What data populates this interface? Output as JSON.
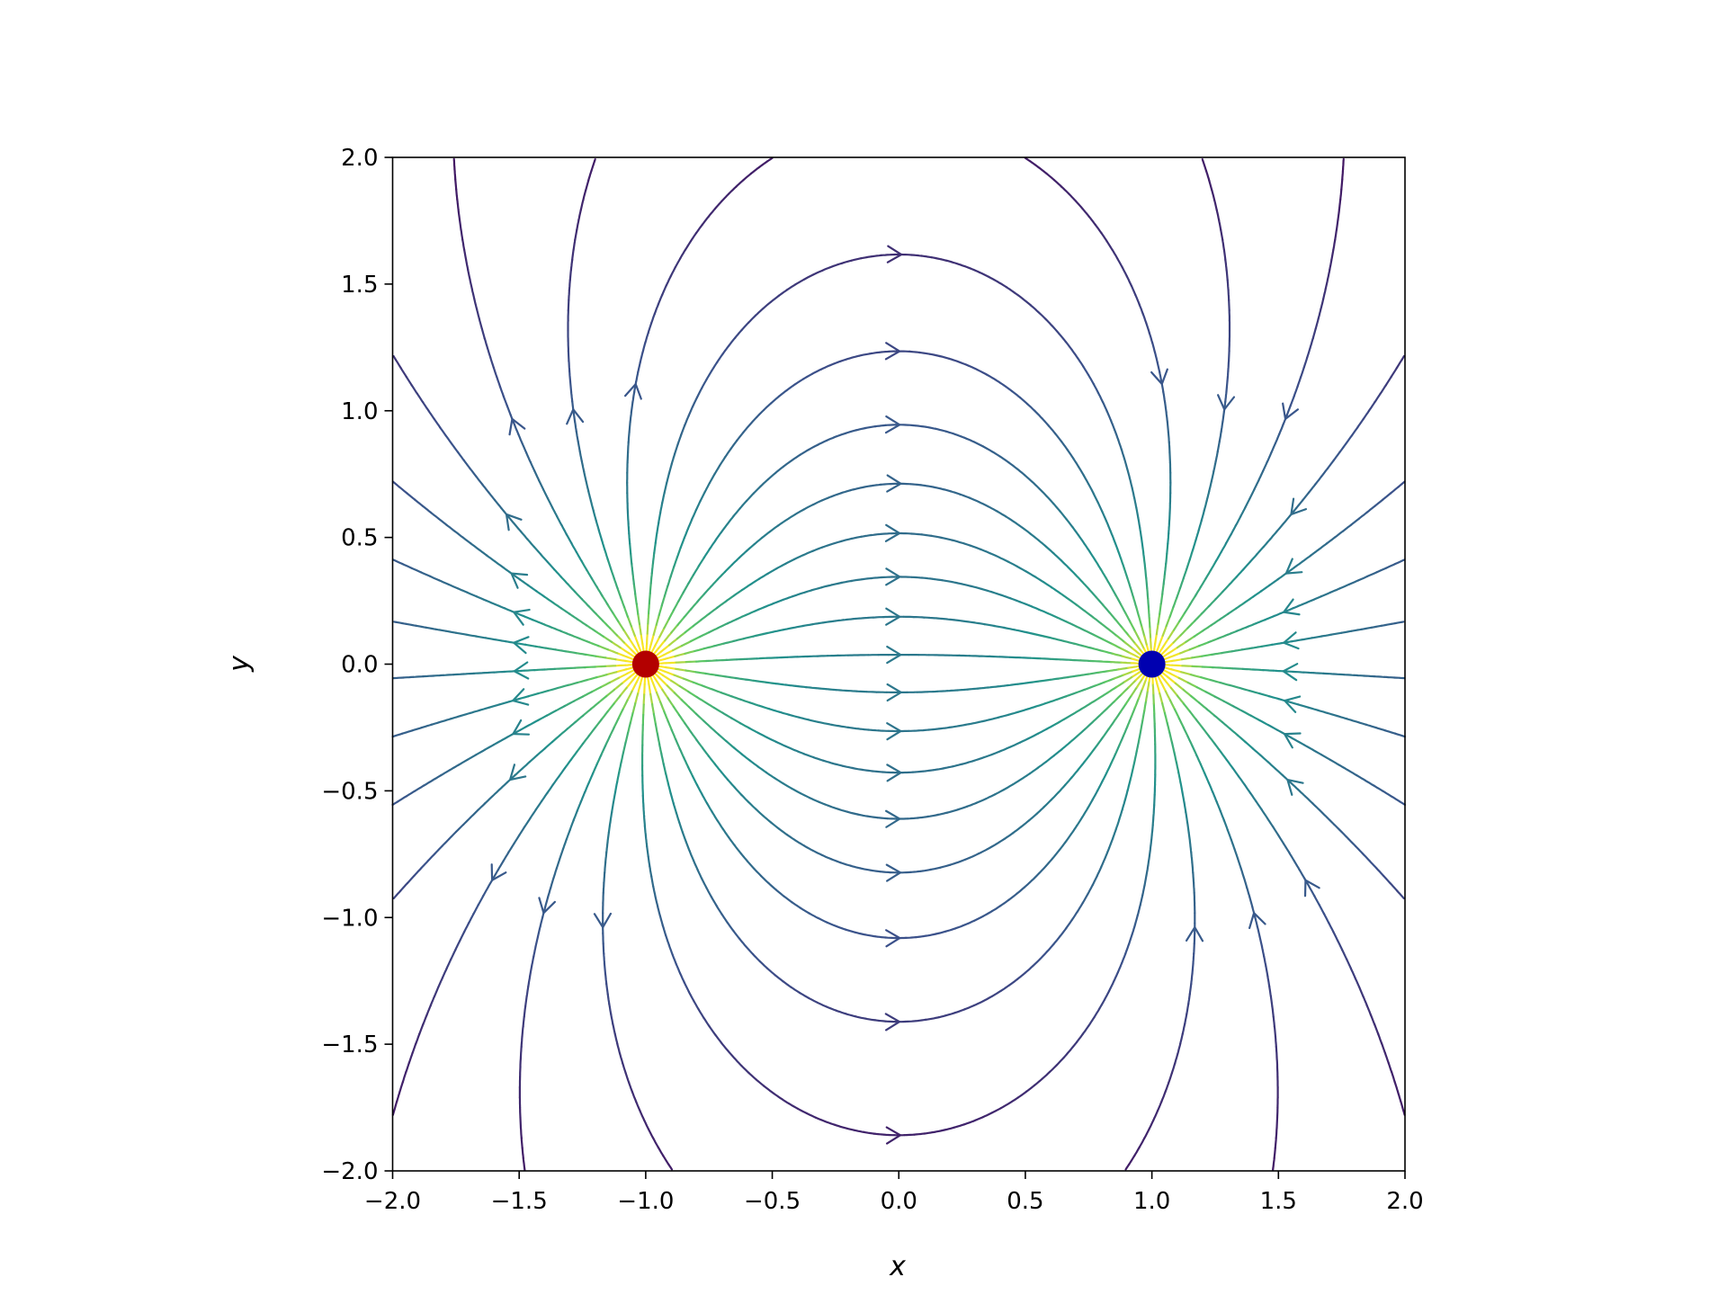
{
  "chart_data": {
    "type": "streamplot",
    "xlabel": "x",
    "ylabel": "y",
    "xlim": [
      -2,
      2
    ],
    "ylim": [
      -2,
      2
    ],
    "xticks": [
      {
        "value": -2,
        "label": "−2.0"
      },
      {
        "value": -1.5,
        "label": "−1.5"
      },
      {
        "value": -1,
        "label": "−1.0"
      },
      {
        "value": -0.5,
        "label": "−0.5"
      },
      {
        "value": 0,
        "label": "0.0"
      },
      {
        "value": 0.5,
        "label": "0.5"
      },
      {
        "value": 1,
        "label": "1.0"
      },
      {
        "value": 1.5,
        "label": "1.5"
      },
      {
        "value": 2,
        "label": "2.0"
      }
    ],
    "yticks": [
      {
        "value": -2,
        "label": "−2.0"
      },
      {
        "value": -1.5,
        "label": "−1.5"
      },
      {
        "value": -1,
        "label": "−1.0"
      },
      {
        "value": -0.5,
        "label": "−0.5"
      },
      {
        "value": 0,
        "label": "0.0"
      },
      {
        "value": 0.5,
        "label": "0.5"
      },
      {
        "value": 1,
        "label": "1.0"
      },
      {
        "value": 1.5,
        "label": "1.5"
      },
      {
        "value": 2,
        "label": "2.0"
      }
    ],
    "points": [
      {
        "x": -1,
        "y": 0,
        "color": "#b30000"
      },
      {
        "x": 1,
        "y": 0,
        "color": "#0000b0"
      }
    ]
  }
}
